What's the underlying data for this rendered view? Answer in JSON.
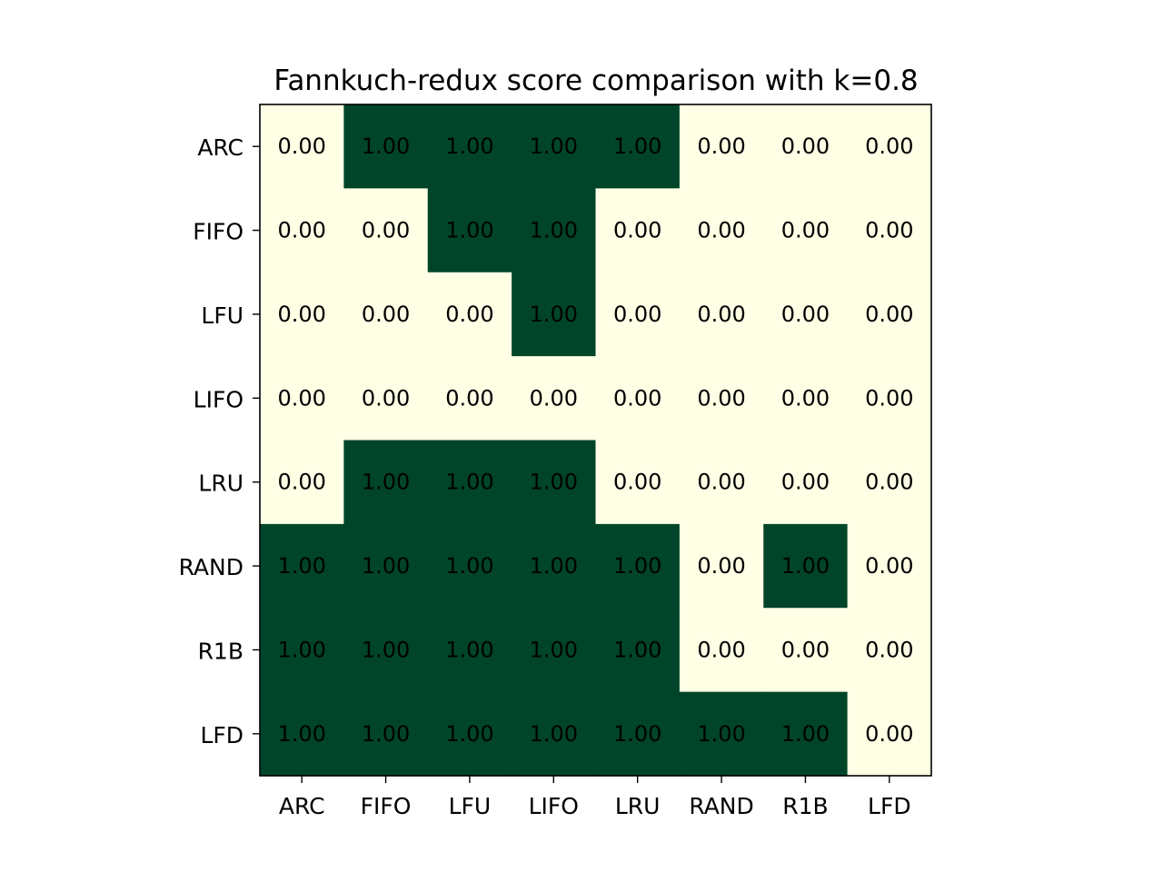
{
  "chart_data": {
    "type": "heatmap",
    "title": "Fannkuch-redux score comparison with k=0.8",
    "xlabel": "",
    "ylabel": "",
    "x_categories": [
      "ARC",
      "FIFO",
      "LFU",
      "LIFO",
      "LRU",
      "RAND",
      "R1B",
      "LFD"
    ],
    "y_categories": [
      "ARC",
      "FIFO",
      "LFU",
      "LIFO",
      "LRU",
      "RAND",
      "R1B",
      "LFD"
    ],
    "values": [
      [
        0,
        1,
        1,
        1,
        1,
        0,
        0,
        0
      ],
      [
        0,
        0,
        1,
        1,
        0,
        0,
        0,
        0
      ],
      [
        0,
        0,
        0,
        1,
        0,
        0,
        0,
        0
      ],
      [
        0,
        0,
        0,
        0,
        0,
        0,
        0,
        0
      ],
      [
        0,
        1,
        1,
        1,
        0,
        0,
        0,
        0
      ],
      [
        1,
        1,
        1,
        1,
        1,
        0,
        1,
        0
      ],
      [
        1,
        1,
        1,
        1,
        1,
        0,
        0,
        0
      ],
      [
        1,
        1,
        1,
        1,
        1,
        1,
        1,
        0
      ]
    ],
    "value_format": "0.00",
    "range": [
      0,
      1
    ],
    "grid": false,
    "legend": "none",
    "colors": {
      "low": "#ffffe5",
      "high": "#004529",
      "text": "#000000"
    }
  }
}
